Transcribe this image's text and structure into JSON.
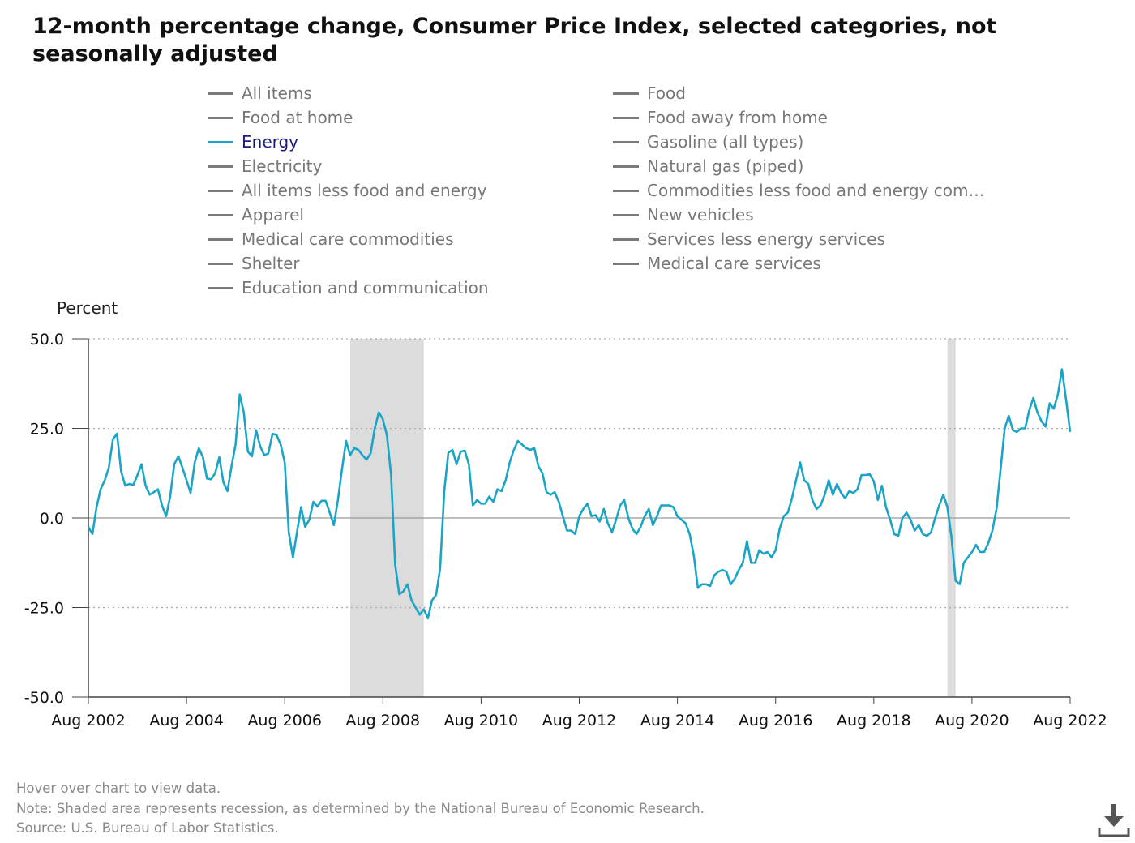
{
  "title": "12-month percentage change, Consumer Price Index, selected categories, not seasonally adjusted",
  "legend": [
    {
      "label": "All items",
      "active": false
    },
    {
      "label": "Food",
      "active": false
    },
    {
      "label": "Food at home",
      "active": false
    },
    {
      "label": "Food away from home",
      "active": false
    },
    {
      "label": "Energy",
      "active": true
    },
    {
      "label": "Gasoline (all types)",
      "active": false
    },
    {
      "label": "Electricity",
      "active": false
    },
    {
      "label": "Natural gas (piped)",
      "active": false
    },
    {
      "label": "All items less food and energy",
      "active": false
    },
    {
      "label": "Commodities less food and energy com…",
      "active": false
    },
    {
      "label": "Apparel",
      "active": false
    },
    {
      "label": "New vehicles",
      "active": false
    },
    {
      "label": "Medical care commodities",
      "active": false
    },
    {
      "label": "Services less energy services",
      "active": false
    },
    {
      "label": "Shelter",
      "active": false
    },
    {
      "label": "Medical care services",
      "active": false
    },
    {
      "label": "Education and communication",
      "active": false
    }
  ],
  "colors": {
    "series": "#1aa5c6",
    "recession": "#dcdcdc",
    "inactive_legend": "#7a7a7a",
    "active_legend_text": "#1a1a7a"
  },
  "footnotes": {
    "hover": "Hover over chart to view data.",
    "note": "Note: Shaded area represents recession, as determined by the National Bureau of Economic Research.",
    "source": "Source: U.S. Bureau of Labor Statistics."
  },
  "download_icon": "download-icon",
  "chart_data": {
    "type": "line",
    "ylabel": "Percent",
    "ylim": [
      -50,
      50
    ],
    "yticks": [
      "50.0",
      "25.0",
      "0.0",
      "-25.0",
      "-50.0"
    ],
    "xlim": [
      "2002-08",
      "2022-08"
    ],
    "xticks": [
      "Aug 2002",
      "Aug 2004",
      "Aug 2006",
      "Aug 2008",
      "Aug 2010",
      "Aug 2012",
      "Aug 2014",
      "Aug 2016",
      "Aug 2018",
      "Aug 2020",
      "Aug 2022"
    ],
    "recessions": [
      [
        "2007-12",
        "2009-06"
      ],
      [
        "2020-02",
        "2020-04"
      ]
    ],
    "grid": "horizontal dotted",
    "series": [
      {
        "name": "Energy",
        "points": [
          [
            "2002-08",
            -2.5
          ],
          [
            "2002-09",
            -4.5
          ],
          [
            "2002-10",
            3
          ],
          [
            "2002-11",
            8
          ],
          [
            "2002-12",
            10.5
          ],
          [
            "2003-01",
            14
          ],
          [
            "2003-02",
            22
          ],
          [
            "2003-03",
            23.5
          ],
          [
            "2003-04",
            13
          ],
          [
            "2003-05",
            9
          ],
          [
            "2003-06",
            9.5
          ],
          [
            "2003-07",
            9.2
          ],
          [
            "2003-08",
            12
          ],
          [
            "2003-09",
            15
          ],
          [
            "2003-10",
            9
          ],
          [
            "2003-11",
            6.5
          ],
          [
            "2003-12",
            7.2
          ],
          [
            "2004-01",
            8
          ],
          [
            "2004-02",
            3.5
          ],
          [
            "2004-03",
            0.5
          ],
          [
            "2004-04",
            6
          ],
          [
            "2004-05",
            15
          ],
          [
            "2004-06",
            17.2
          ],
          [
            "2004-07",
            14
          ],
          [
            "2004-08",
            10.5
          ],
          [
            "2004-09",
            7
          ],
          [
            "2004-10",
            15.5
          ],
          [
            "2004-11",
            19.5
          ],
          [
            "2004-12",
            17
          ],
          [
            "2005-01",
            11
          ],
          [
            "2005-02",
            10.8
          ],
          [
            "2005-03",
            12.5
          ],
          [
            "2005-04",
            17
          ],
          [
            "2005-05",
            10
          ],
          [
            "2005-06",
            7.5
          ],
          [
            "2005-07",
            14.5
          ],
          [
            "2005-08",
            20.5
          ],
          [
            "2005-09",
            34.5
          ],
          [
            "2005-10",
            29.5
          ],
          [
            "2005-11",
            18.5
          ],
          [
            "2005-12",
            17.2
          ],
          [
            "2006-01",
            24.5
          ],
          [
            "2006-02",
            20
          ],
          [
            "2006-03",
            17.5
          ],
          [
            "2006-04",
            18
          ],
          [
            "2006-05",
            23.5
          ],
          [
            "2006-06",
            23.2
          ],
          [
            "2006-07",
            20.5
          ],
          [
            "2006-08",
            15.5
          ],
          [
            "2006-09",
            -4
          ],
          [
            "2006-10",
            -11
          ],
          [
            "2006-11",
            -4
          ],
          [
            "2006-12",
            3
          ],
          [
            "2007-01",
            -2.5
          ],
          [
            "2007-02",
            -0.5
          ],
          [
            "2007-03",
            4.5
          ],
          [
            "2007-04",
            3.2
          ],
          [
            "2007-05",
            4.8
          ],
          [
            "2007-06",
            4.8
          ],
          [
            "2007-07",
            1.5
          ],
          [
            "2007-08",
            -2
          ],
          [
            "2007-09",
            5
          ],
          [
            "2007-10",
            13.5
          ],
          [
            "2007-11",
            21.5
          ],
          [
            "2007-12",
            17.5
          ],
          [
            "2008-01",
            19.5
          ],
          [
            "2008-02",
            19
          ],
          [
            "2008-03",
            17.5
          ],
          [
            "2008-04",
            16.3
          ],
          [
            "2008-05",
            18
          ],
          [
            "2008-06",
            25
          ],
          [
            "2008-07",
            29.5
          ],
          [
            "2008-08",
            27.5
          ],
          [
            "2008-09",
            23
          ],
          [
            "2008-10",
            12
          ],
          [
            "2008-11",
            -13
          ],
          [
            "2008-12",
            -21.3
          ],
          [
            "2009-01",
            -20.5
          ],
          [
            "2009-02",
            -18.5
          ],
          [
            "2009-03",
            -23
          ],
          [
            "2009-04",
            -25
          ],
          [
            "2009-05",
            -27
          ],
          [
            "2009-06",
            -25.5
          ],
          [
            "2009-07",
            -28
          ],
          [
            "2009-08",
            -23
          ],
          [
            "2009-09",
            -21.5
          ],
          [
            "2009-10",
            -14
          ],
          [
            "2009-11",
            7.5
          ],
          [
            "2009-12",
            18.2
          ],
          [
            "2010-01",
            19
          ],
          [
            "2010-02",
            15
          ],
          [
            "2010-03",
            18.5
          ],
          [
            "2010-04",
            18.8
          ],
          [
            "2010-05",
            15
          ],
          [
            "2010-06",
            3.5
          ],
          [
            "2010-07",
            5
          ],
          [
            "2010-08",
            4
          ],
          [
            "2010-09",
            4
          ],
          [
            "2010-10",
            6
          ],
          [
            "2010-11",
            4.5
          ],
          [
            "2010-12",
            8
          ],
          [
            "2011-01",
            7.5
          ],
          [
            "2011-02",
            10.5
          ],
          [
            "2011-03",
            15.5
          ],
          [
            "2011-04",
            19
          ],
          [
            "2011-05",
            21.5
          ],
          [
            "2011-06",
            20.5
          ],
          [
            "2011-07",
            19.5
          ],
          [
            "2011-08",
            19
          ],
          [
            "2011-09",
            19.5
          ],
          [
            "2011-10",
            14.5
          ],
          [
            "2011-11",
            12.5
          ],
          [
            "2011-12",
            7.2
          ],
          [
            "2012-01",
            6.5
          ],
          [
            "2012-02",
            7.2
          ],
          [
            "2012-03",
            4.5
          ],
          [
            "2012-04",
            0.5
          ],
          [
            "2012-05",
            -3.5
          ],
          [
            "2012-06",
            -3.5
          ],
          [
            "2012-07",
            -4.5
          ],
          [
            "2012-08",
            0.5
          ],
          [
            "2012-09",
            2.5
          ],
          [
            "2012-10",
            4
          ],
          [
            "2012-11",
            0.5
          ],
          [
            "2012-12",
            0.8
          ],
          [
            "2013-01",
            -1
          ],
          [
            "2013-02",
            2.5
          ],
          [
            "2013-03",
            -1.5
          ],
          [
            "2013-04",
            -4
          ],
          [
            "2013-05",
            -0.5
          ],
          [
            "2013-06",
            3.5
          ],
          [
            "2013-07",
            5
          ],
          [
            "2013-08",
            0
          ],
          [
            "2013-09",
            -3
          ],
          [
            "2013-10",
            -4.5
          ],
          [
            "2013-11",
            -2.5
          ],
          [
            "2013-12",
            0.5
          ],
          [
            "2014-01",
            2.5
          ],
          [
            "2014-02",
            -2
          ],
          [
            "2014-03",
            0.5
          ],
          [
            "2014-04",
            3.5
          ],
          [
            "2014-05",
            3.5
          ],
          [
            "2014-06",
            3.5
          ],
          [
            "2014-07",
            3
          ],
          [
            "2014-08",
            0.5
          ],
          [
            "2014-09",
            -0.5
          ],
          [
            "2014-10",
            -1.5
          ],
          [
            "2014-11",
            -4.5
          ],
          [
            "2014-12",
            -10.5
          ],
          [
            "2015-01",
            -19.5
          ],
          [
            "2015-02",
            -18.5
          ],
          [
            "2015-03",
            -18.5
          ],
          [
            "2015-04",
            -19
          ],
          [
            "2015-05",
            -16
          ],
          [
            "2015-06",
            -15
          ],
          [
            "2015-07",
            -14.5
          ],
          [
            "2015-08",
            -15
          ],
          [
            "2015-09",
            -18.5
          ],
          [
            "2015-10",
            -17
          ],
          [
            "2015-11",
            -14.5
          ],
          [
            "2015-12",
            -12.5
          ],
          [
            "2016-01",
            -6.5
          ],
          [
            "2016-02",
            -12.5
          ],
          [
            "2016-03",
            -12.5
          ],
          [
            "2016-04",
            -9
          ],
          [
            "2016-05",
            -10
          ],
          [
            "2016-06",
            -9.5
          ],
          [
            "2016-07",
            -11
          ],
          [
            "2016-08",
            -9
          ],
          [
            "2016-09",
            -3
          ],
          [
            "2016-10",
            0.5
          ],
          [
            "2016-11",
            1.5
          ],
          [
            "2016-12",
            5.5
          ],
          [
            "2017-01",
            10.5
          ],
          [
            "2017-02",
            15.5
          ],
          [
            "2017-03",
            10.5
          ],
          [
            "2017-04",
            9.5
          ],
          [
            "2017-05",
            5
          ],
          [
            "2017-06",
            2.5
          ],
          [
            "2017-07",
            3.5
          ],
          [
            "2017-08",
            6.5
          ],
          [
            "2017-09",
            10.5
          ],
          [
            "2017-10",
            6.5
          ],
          [
            "2017-11",
            9.5
          ],
          [
            "2017-12",
            7
          ],
          [
            "2018-01",
            5.5
          ],
          [
            "2018-02",
            7.5
          ],
          [
            "2018-03",
            7
          ],
          [
            "2018-04",
            8
          ],
          [
            "2018-05",
            12
          ],
          [
            "2018-06",
            12
          ],
          [
            "2018-07",
            12.2
          ],
          [
            "2018-08",
            10.2
          ],
          [
            "2018-09",
            5
          ],
          [
            "2018-10",
            9
          ],
          [
            "2018-11",
            3
          ],
          [
            "2018-12",
            -0.5
          ],
          [
            "2019-01",
            -4.5
          ],
          [
            "2019-02",
            -5
          ],
          [
            "2019-03",
            0
          ],
          [
            "2019-04",
            1.5
          ],
          [
            "2019-05",
            -0.5
          ],
          [
            "2019-06",
            -3.5
          ],
          [
            "2019-07",
            -2
          ],
          [
            "2019-08",
            -4.5
          ],
          [
            "2019-09",
            -5
          ],
          [
            "2019-10",
            -4
          ],
          [
            "2019-11",
            0
          ],
          [
            "2019-12",
            3.5
          ],
          [
            "2020-01",
            6.5
          ],
          [
            "2020-02",
            3
          ],
          [
            "2020-03",
            -5.5
          ],
          [
            "2020-04",
            -17.5
          ],
          [
            "2020-05",
            -18.5
          ],
          [
            "2020-06",
            -12.5
          ],
          [
            "2020-07",
            -11
          ],
          [
            "2020-08",
            -9.5
          ],
          [
            "2020-09",
            -7.5
          ],
          [
            "2020-10",
            -9.5
          ],
          [
            "2020-11",
            -9.5
          ],
          [
            "2020-12",
            -7
          ],
          [
            "2021-01",
            -3.5
          ],
          [
            "2021-02",
            2.5
          ],
          [
            "2021-03",
            13.5
          ],
          [
            "2021-04",
            25
          ],
          [
            "2021-05",
            28.5
          ],
          [
            "2021-06",
            24.5
          ],
          [
            "2021-07",
            24
          ],
          [
            "2021-08",
            25
          ],
          [
            "2021-09",
            25
          ],
          [
            "2021-10",
            30
          ],
          [
            "2021-11",
            33.5
          ],
          [
            "2021-12",
            29.5
          ],
          [
            "2022-01",
            27
          ],
          [
            "2022-02",
            25.5
          ],
          [
            "2022-03",
            32
          ],
          [
            "2022-04",
            30.5
          ],
          [
            "2022-05",
            34.5
          ],
          [
            "2022-06",
            41.5
          ],
          [
            "2022-07",
            33
          ],
          [
            "2022-08",
            24
          ]
        ]
      }
    ]
  }
}
